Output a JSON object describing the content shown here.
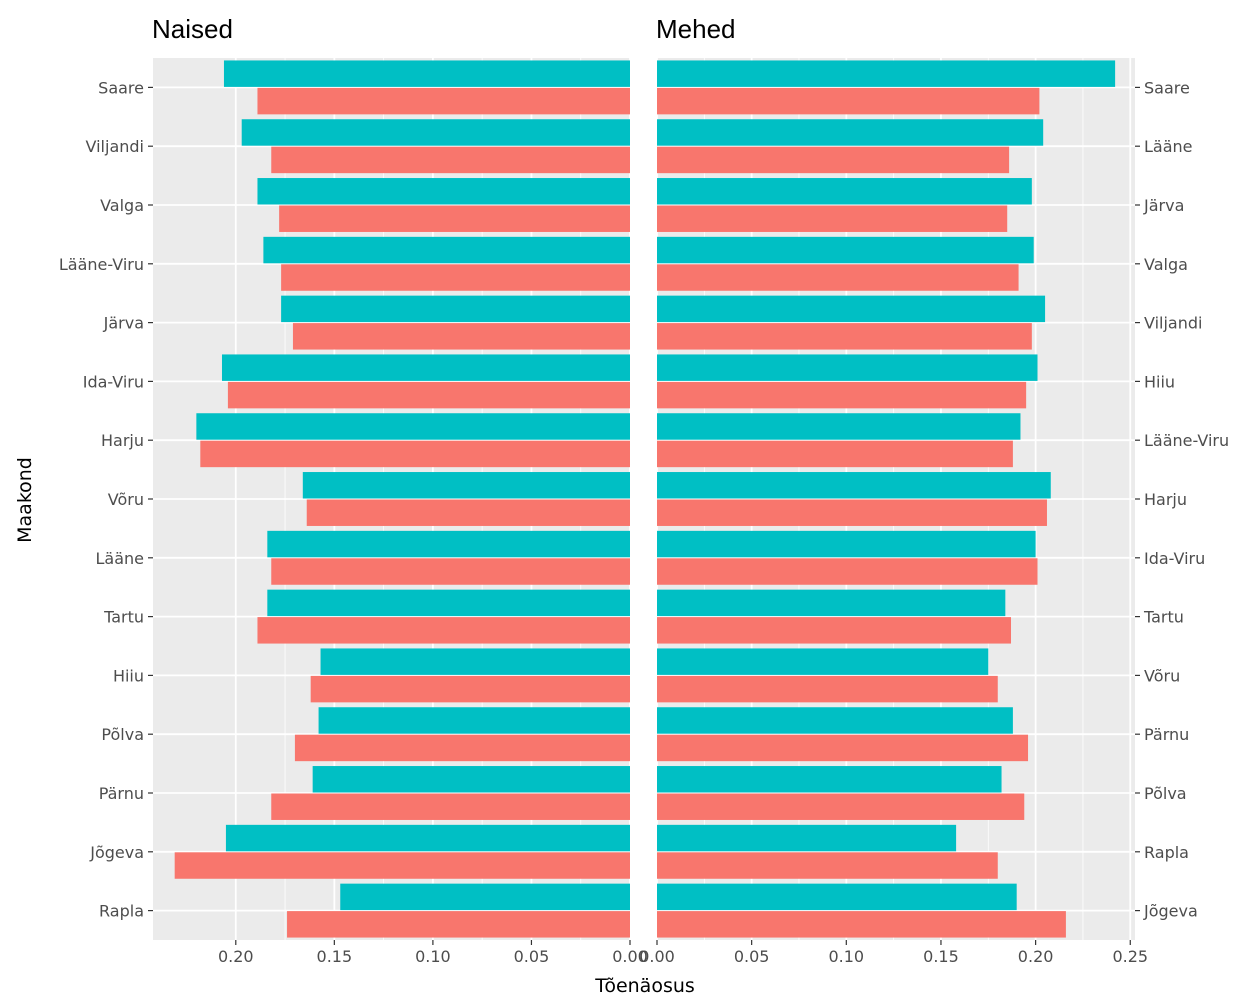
{
  "chart_data": {
    "type": "bar",
    "orientation": "horizontal",
    "xlabel": "Tõenäosus",
    "ylabel": "Maakond",
    "grid": true,
    "legend": "none",
    "colors": {
      "series_a": "#00bfc4",
      "series_b": "#f8766d",
      "panel_bg": "#ebebeb",
      "grid": "#ffffff"
    },
    "panels": [
      {
        "title": "Naised",
        "x_reversed": true,
        "xlim": [
          0,
          0.242
        ],
        "xticks": [
          0.2,
          0.15,
          0.1,
          0.05,
          0.0
        ],
        "xtick_labels": [
          "0.20",
          "0.15",
          "0.10",
          "0.05",
          "0.00"
        ],
        "categories": [
          "Saare",
          "Viljandi",
          "Valga",
          "Lääne-Viru",
          "Järva",
          "Ida-Viru",
          "Harju",
          "Võru",
          "Lääne",
          "Tartu",
          "Hiiu",
          "Põlva",
          "Pärnu",
          "Jõgeva",
          "Rapla"
        ],
        "series": [
          {
            "color": "#00bfc4",
            "values": [
              0.206,
              0.197,
              0.189,
              0.186,
              0.177,
              0.207,
              0.22,
              0.166,
              0.184,
              0.184,
              0.157,
              0.158,
              0.161,
              0.205,
              0.147
            ]
          },
          {
            "color": "#f8766d",
            "values": [
              0.189,
              0.182,
              0.178,
              0.177,
              0.171,
              0.204,
              0.218,
              0.164,
              0.182,
              0.189,
              0.162,
              0.17,
              0.182,
              0.231,
              0.174
            ]
          }
        ]
      },
      {
        "title": "Mehed",
        "x_reversed": false,
        "xlim": [
          0,
          0.2525
        ],
        "xticks": [
          0.0,
          0.05,
          0.1,
          0.15,
          0.2,
          0.25
        ],
        "xtick_labels": [
          "0.00",
          "0.05",
          "0.10",
          "0.15",
          "0.20",
          "0.25"
        ],
        "categories": [
          "Saare",
          "Lääne",
          "Järva",
          "Valga",
          "Viljandi",
          "Hiiu",
          "Lääne-Viru",
          "Harju",
          "Ida-Viru",
          "Tartu",
          "Võru",
          "Pärnu",
          "Põlva",
          "Rapla",
          "Jõgeva"
        ],
        "series": [
          {
            "color": "#00bfc4",
            "values": [
              0.242,
              0.204,
              0.198,
              0.199,
              0.205,
              0.201,
              0.192,
              0.208,
              0.2,
              0.184,
              0.175,
              0.188,
              0.182,
              0.158,
              0.19
            ]
          },
          {
            "color": "#f8766d",
            "values": [
              0.202,
              0.186,
              0.185,
              0.191,
              0.198,
              0.195,
              0.188,
              0.206,
              0.201,
              0.187,
              0.18,
              0.196,
              0.194,
              0.18,
              0.216
            ]
          }
        ]
      }
    ]
  }
}
